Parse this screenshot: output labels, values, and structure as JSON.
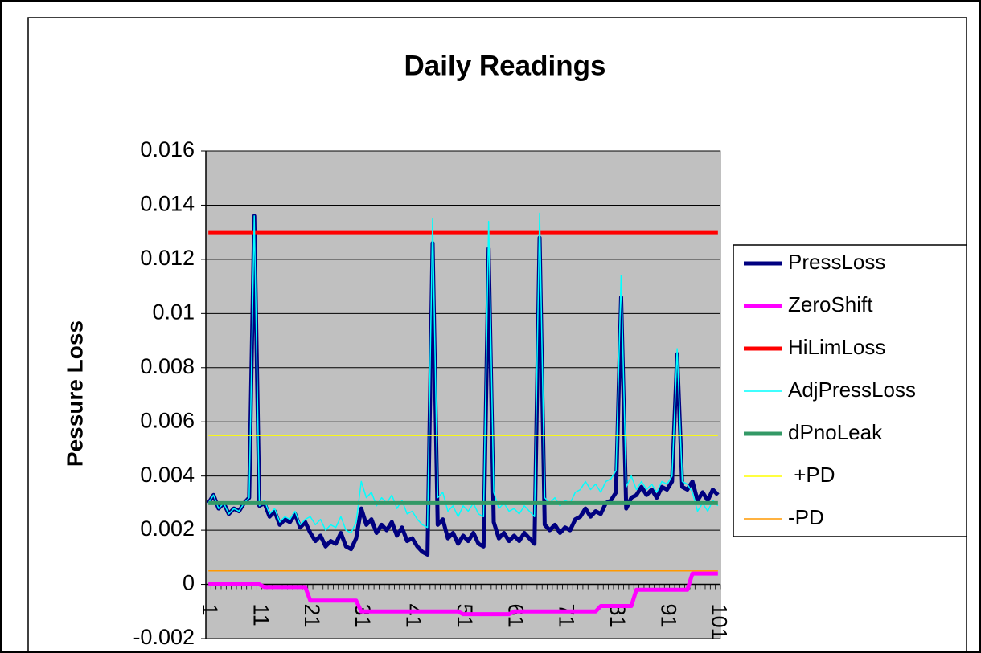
{
  "chart_data": {
    "type": "line",
    "title": "Daily Readings",
    "y_label": "Pessure Loss",
    "categories": [
      1,
      null,
      null,
      null,
      null,
      null,
      null,
      null,
      null,
      null,
      11,
      null,
      null,
      null,
      null,
      null,
      null,
      null,
      null,
      null,
      21,
      null,
      null,
      null,
      null,
      null,
      null,
      null,
      null,
      null,
      31,
      null,
      null,
      null,
      null,
      null,
      null,
      null,
      null,
      null,
      41,
      null,
      null,
      null,
      null,
      null,
      null,
      null,
      null,
      null,
      51,
      null,
      null,
      null,
      null,
      null,
      null,
      null,
      null,
      null,
      61,
      null,
      null,
      null,
      null,
      null,
      null,
      null,
      null,
      null,
      71,
      null,
      null,
      null,
      null,
      null,
      null,
      null,
      null,
      null,
      81,
      null,
      null,
      null,
      null,
      null,
      null,
      null,
      null,
      null,
      91,
      null,
      null,
      null,
      null,
      null,
      null,
      null,
      null,
      null,
      101
    ],
    "ylim": [
      -0.002,
      0.016
    ],
    "yticks": [
      -0.002,
      0,
      0.002,
      0.004,
      0.006,
      0.008,
      0.01,
      0.012,
      0.014,
      0.016
    ],
    "grid": true,
    "legend": "right",
    "series": [
      {
        "name": "PressLoss",
        "color": "#000080",
        "values": [
          0.003,
          0.0033,
          0.0028,
          0.003,
          0.0026,
          0.0028,
          0.0027,
          0.003,
          0.0032,
          0.0136,
          0.0029,
          0.003,
          0.0025,
          0.0027,
          0.0022,
          0.0024,
          0.0023,
          0.0026,
          0.0021,
          0.0023,
          0.0019,
          0.0016,
          0.0018,
          0.0014,
          0.0016,
          0.0015,
          0.0019,
          0.0014,
          0.0013,
          0.0017,
          0.0028,
          0.0022,
          0.0024,
          0.0019,
          0.0022,
          0.002,
          0.0023,
          0.0018,
          0.0021,
          0.0016,
          0.0017,
          0.0014,
          0.0012,
          0.0011,
          0.0126,
          0.0022,
          0.0024,
          0.0017,
          0.0019,
          0.0015,
          0.0018,
          0.0016,
          0.0019,
          0.0015,
          0.0014,
          0.0124,
          0.0023,
          0.0017,
          0.0019,
          0.0016,
          0.0018,
          0.0016,
          0.0019,
          0.0017,
          0.0015,
          0.0128,
          0.0022,
          0.002,
          0.0022,
          0.0019,
          0.0021,
          0.002,
          0.0024,
          0.0025,
          0.0028,
          0.0025,
          0.0027,
          0.0026,
          0.003,
          0.0031,
          0.0034,
          0.0106,
          0.0028,
          0.0032,
          0.0033,
          0.0036,
          0.0033,
          0.0035,
          0.0032,
          0.0036,
          0.0035,
          0.0038,
          0.0085,
          0.0036,
          0.0035,
          0.0038,
          0.0031,
          0.0034,
          0.0031,
          0.0035,
          0.0033
        ]
      },
      {
        "name": "ZeroShift",
        "color": "#ff00ff",
        "values": [
          0,
          0,
          0,
          0,
          0,
          0,
          0,
          0,
          0,
          0,
          0,
          -0.0001,
          -0.0001,
          -0.0001,
          -0.0001,
          -0.0001,
          -0.0001,
          -0.0001,
          -0.0001,
          -0.0001,
          -0.0006,
          -0.0006,
          -0.0006,
          -0.0006,
          -0.0006,
          -0.0006,
          -0.0006,
          -0.0006,
          -0.0006,
          -0.0006,
          -0.001,
          -0.001,
          -0.001,
          -0.001,
          -0.001,
          -0.001,
          -0.001,
          -0.001,
          -0.001,
          -0.001,
          -0.001,
          -0.001,
          -0.001,
          -0.001,
          -0.001,
          -0.001,
          -0.001,
          -0.001,
          -0.001,
          -0.001,
          -0.0011,
          -0.0011,
          -0.0011,
          -0.0011,
          -0.0011,
          -0.0011,
          -0.0011,
          -0.0011,
          -0.0011,
          -0.0011,
          -0.001,
          -0.001,
          -0.001,
          -0.001,
          -0.001,
          -0.001,
          -0.001,
          -0.001,
          -0.001,
          -0.001,
          -0.001,
          -0.001,
          -0.001,
          -0.001,
          -0.001,
          -0.001,
          -0.001,
          -0.0008,
          -0.0008,
          -0.0008,
          -0.0008,
          -0.0008,
          -0.0008,
          -0.0008,
          -0.0002,
          -0.0002,
          -0.0002,
          -0.0002,
          -0.0002,
          -0.0002,
          -0.0002,
          -0.0002,
          -0.0002,
          -0.0002,
          -0.0002,
          0.0004,
          0.0004,
          0.0004,
          0.0004,
          0.0004,
          0.0004
        ]
      },
      {
        "name": "HiLimLoss",
        "color": "#ff0000",
        "values": [
          0.013,
          0.013,
          0.013,
          0.013,
          0.013,
          0.013,
          0.013,
          0.013,
          0.013,
          0.013,
          0.013,
          0.013,
          0.013,
          0.013,
          0.013,
          0.013,
          0.013,
          0.013,
          0.013,
          0.013,
          0.013,
          0.013,
          0.013,
          0.013,
          0.013,
          0.013,
          0.013,
          0.013,
          0.013,
          0.013,
          0.013,
          0.013,
          0.013,
          0.013,
          0.013,
          0.013,
          0.013,
          0.013,
          0.013,
          0.013,
          0.013,
          0.013,
          0.013,
          0.013,
          0.013,
          0.013,
          0.013,
          0.013,
          0.013,
          0.013,
          0.013,
          0.013,
          0.013,
          0.013,
          0.013,
          0.013,
          0.013,
          0.013,
          0.013,
          0.013,
          0.013,
          0.013,
          0.013,
          0.013,
          0.013,
          0.013,
          0.013,
          0.013,
          0.013,
          0.013,
          0.013,
          0.013,
          0.013,
          0.013,
          0.013,
          0.013,
          0.013,
          0.013,
          0.013,
          0.013,
          0.013,
          0.013,
          0.013,
          0.013,
          0.013,
          0.013,
          0.013,
          0.013,
          0.013,
          0.013,
          0.013,
          0.013,
          0.013,
          0.013,
          0.013,
          0.013,
          0.013,
          0.013,
          0.013,
          0.013,
          0.013
        ]
      },
      {
        "name": "AdjPressLoss",
        "color": "#00ffff",
        "values": [
          0.003,
          0.0033,
          0.0028,
          0.003,
          0.0026,
          0.0028,
          0.0027,
          0.003,
          0.0032,
          0.0136,
          0.0029,
          0.0031,
          0.0026,
          0.0028,
          0.0023,
          0.0025,
          0.0024,
          0.0027,
          0.0022,
          0.0024,
          0.0025,
          0.0022,
          0.0024,
          0.002,
          0.0022,
          0.0021,
          0.0025,
          0.002,
          0.0019,
          0.0023,
          0.0038,
          0.0032,
          0.0034,
          0.0029,
          0.0032,
          0.003,
          0.0033,
          0.0028,
          0.0031,
          0.0026,
          0.0027,
          0.0024,
          0.0022,
          0.0021,
          0.0135,
          0.0032,
          0.0034,
          0.0027,
          0.0029,
          0.0025,
          0.0029,
          0.0027,
          0.003,
          0.0026,
          0.0025,
          0.0134,
          0.0034,
          0.0028,
          0.003,
          0.0027,
          0.0028,
          0.0026,
          0.0029,
          0.0027,
          0.0025,
          0.0137,
          0.0032,
          0.003,
          0.0032,
          0.0029,
          0.0031,
          0.003,
          0.0034,
          0.0035,
          0.0038,
          0.0035,
          0.0037,
          0.0034,
          0.0038,
          0.0039,
          0.0042,
          0.0114,
          0.0036,
          0.004,
          0.0035,
          0.0038,
          0.0035,
          0.0037,
          0.0034,
          0.0038,
          0.0037,
          0.004,
          0.0087,
          0.0038,
          0.0037,
          0.0034,
          0.0027,
          0.003,
          0.0027,
          0.0031,
          0.0029
        ]
      },
      {
        "name": "dPnoLeak",
        "color": "#339966",
        "values": [
          0.003,
          0.003,
          0.003,
          0.003,
          0.003,
          0.003,
          0.003,
          0.003,
          0.003,
          0.003,
          0.003,
          0.003,
          0.003,
          0.003,
          0.003,
          0.003,
          0.003,
          0.003,
          0.003,
          0.003,
          0.003,
          0.003,
          0.003,
          0.003,
          0.003,
          0.003,
          0.003,
          0.003,
          0.003,
          0.003,
          0.003,
          0.003,
          0.003,
          0.003,
          0.003,
          0.003,
          0.003,
          0.003,
          0.003,
          0.003,
          0.003,
          0.003,
          0.003,
          0.003,
          0.003,
          0.003,
          0.003,
          0.003,
          0.003,
          0.003,
          0.003,
          0.003,
          0.003,
          0.003,
          0.003,
          0.003,
          0.003,
          0.003,
          0.003,
          0.003,
          0.003,
          0.003,
          0.003,
          0.003,
          0.003,
          0.003,
          0.003,
          0.003,
          0.003,
          0.003,
          0.003,
          0.003,
          0.003,
          0.003,
          0.003,
          0.003,
          0.003,
          0.003,
          0.003,
          0.003,
          0.003,
          0.003,
          0.003,
          0.003,
          0.003,
          0.003,
          0.003,
          0.003,
          0.003,
          0.003,
          0.003,
          0.003,
          0.003,
          0.003,
          0.003,
          0.003,
          0.003,
          0.003,
          0.003,
          0.003,
          0.003
        ]
      },
      {
        "name": " +PD",
        "color": "#ffff00",
        "values": [
          0.0055,
          0.0055,
          0.0055,
          0.0055,
          0.0055,
          0.0055,
          0.0055,
          0.0055,
          0.0055,
          0.0055,
          0.0055,
          0.0055,
          0.0055,
          0.0055,
          0.0055,
          0.0055,
          0.0055,
          0.0055,
          0.0055,
          0.0055,
          0.0055,
          0.0055,
          0.0055,
          0.0055,
          0.0055,
          0.0055,
          0.0055,
          0.0055,
          0.0055,
          0.0055,
          0.0055,
          0.0055,
          0.0055,
          0.0055,
          0.0055,
          0.0055,
          0.0055,
          0.0055,
          0.0055,
          0.0055,
          0.0055,
          0.0055,
          0.0055,
          0.0055,
          0.0055,
          0.0055,
          0.0055,
          0.0055,
          0.0055,
          0.0055,
          0.0055,
          0.0055,
          0.0055,
          0.0055,
          0.0055,
          0.0055,
          0.0055,
          0.0055,
          0.0055,
          0.0055,
          0.0055,
          0.0055,
          0.0055,
          0.0055,
          0.0055,
          0.0055,
          0.0055,
          0.0055,
          0.0055,
          0.0055,
          0.0055,
          0.0055,
          0.0055,
          0.0055,
          0.0055,
          0.0055,
          0.0055,
          0.0055,
          0.0055,
          0.0055,
          0.0055,
          0.0055,
          0.0055,
          0.0055,
          0.0055,
          0.0055,
          0.0055,
          0.0055,
          0.0055,
          0.0055,
          0.0055,
          0.0055,
          0.0055,
          0.0055,
          0.0055,
          0.0055,
          0.0055,
          0.0055,
          0.0055,
          0.0055,
          0.0055
        ]
      },
      {
        "name": "-PD",
        "color": "#ff9900",
        "values": [
          0.0005,
          0.0005,
          0.0005,
          0.0005,
          0.0005,
          0.0005,
          0.0005,
          0.0005,
          0.0005,
          0.0005,
          0.0005,
          0.0005,
          0.0005,
          0.0005,
          0.0005,
          0.0005,
          0.0005,
          0.0005,
          0.0005,
          0.0005,
          0.0005,
          0.0005,
          0.0005,
          0.0005,
          0.0005,
          0.0005,
          0.0005,
          0.0005,
          0.0005,
          0.0005,
          0.0005,
          0.0005,
          0.0005,
          0.0005,
          0.0005,
          0.0005,
          0.0005,
          0.0005,
          0.0005,
          0.0005,
          0.0005,
          0.0005,
          0.0005,
          0.0005,
          0.0005,
          0.0005,
          0.0005,
          0.0005,
          0.0005,
          0.0005,
          0.0005,
          0.0005,
          0.0005,
          0.0005,
          0.0005,
          0.0005,
          0.0005,
          0.0005,
          0.0005,
          0.0005,
          0.0005,
          0.0005,
          0.0005,
          0.0005,
          0.0005,
          0.0005,
          0.0005,
          0.0005,
          0.0005,
          0.0005,
          0.0005,
          0.0005,
          0.0005,
          0.0005,
          0.0005,
          0.0005,
          0.0005,
          0.0005,
          0.0005,
          0.0005,
          0.0005,
          0.0005,
          0.0005,
          0.0005,
          0.0005,
          0.0005,
          0.0005,
          0.0005,
          0.0005,
          0.0005,
          0.0005,
          0.0005,
          0.0005,
          0.0005,
          0.0005,
          0.0005,
          0.0005,
          0.0005,
          0.0005,
          0.0005,
          0.0005
        ]
      }
    ]
  }
}
